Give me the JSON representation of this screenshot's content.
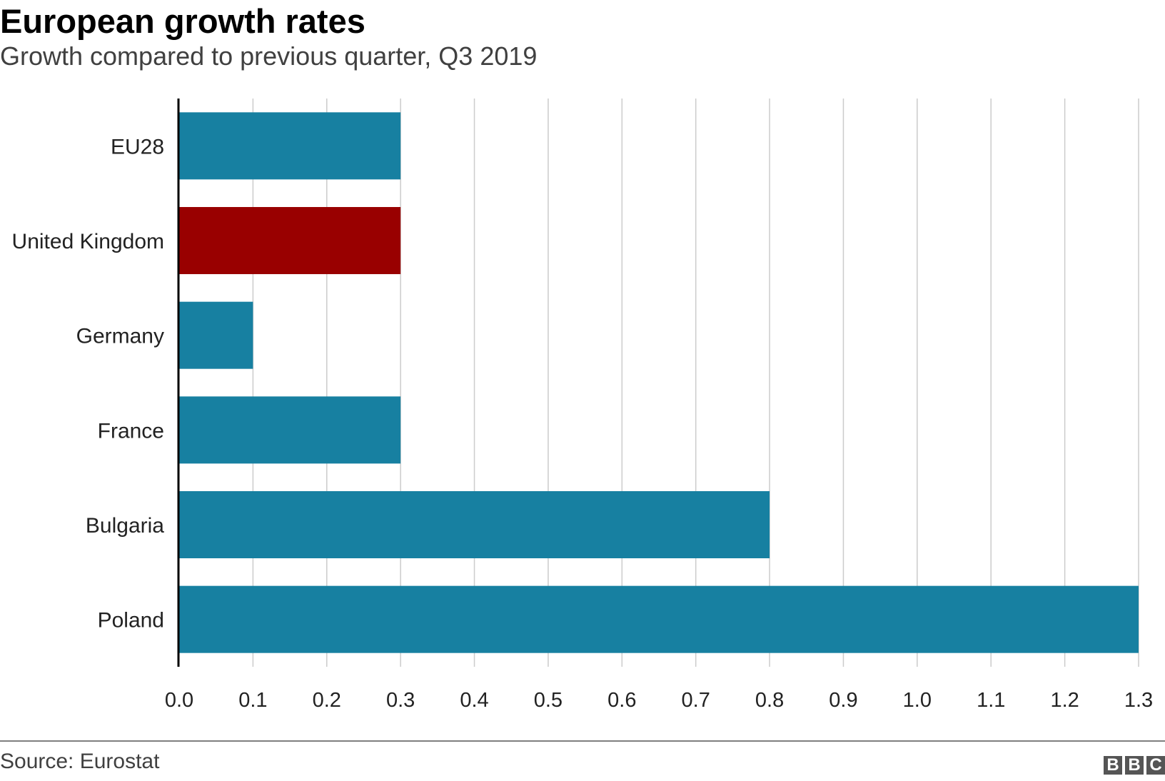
{
  "chart_data": {
    "type": "bar",
    "orientation": "horizontal",
    "title": "European growth rates",
    "subtitle": "Growth compared to previous quarter, Q3 2019",
    "categories": [
      "EU28",
      "United Kingdom",
      "Germany",
      "France",
      "Bulgaria",
      "Poland"
    ],
    "values": [
      0.3,
      0.3,
      0.1,
      0.3,
      0.8,
      1.3
    ],
    "highlight": [
      "United Kingdom"
    ],
    "colors": {
      "default": "#1780a1",
      "highlight": "#990000"
    },
    "xlim": [
      0,
      1.3
    ],
    "xticks": [
      "0.0",
      "0.1",
      "0.2",
      "0.3",
      "0.4",
      "0.5",
      "0.6",
      "0.7",
      "0.8",
      "0.9",
      "1.0",
      "1.1",
      "1.2",
      "1.3"
    ],
    "xlabel": "",
    "ylabel": "",
    "grid": true
  },
  "footer": {
    "source": "Source: Eurostat",
    "logo_letters": [
      "B",
      "B",
      "C"
    ]
  }
}
